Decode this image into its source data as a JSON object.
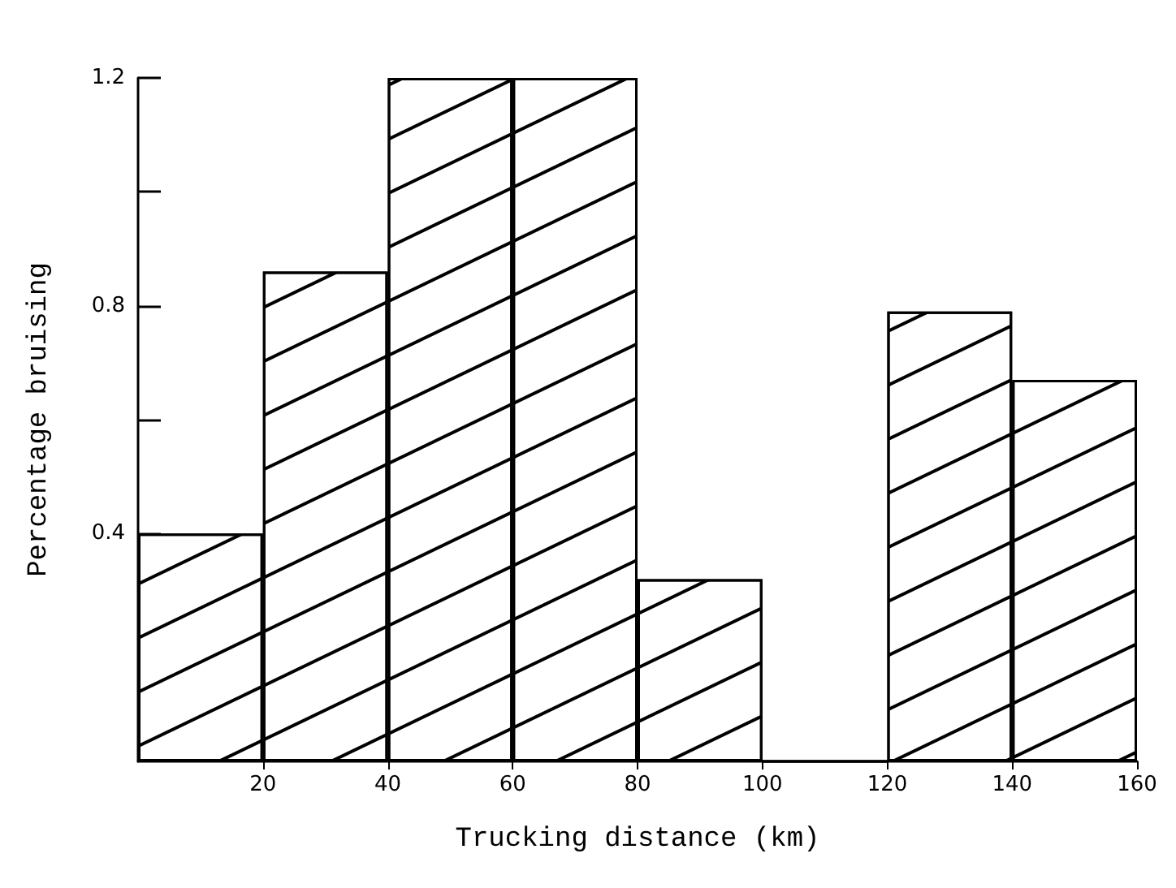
{
  "chart_data": {
    "type": "histogram",
    "xlabel": "Trucking distance (km)",
    "ylabel": "Percentage bruising",
    "bins": [
      0,
      20,
      40,
      60,
      80,
      100,
      120,
      140,
      160
    ],
    "values": [
      0.4,
      0.86,
      1.2,
      1.2,
      0.32,
      0,
      0.79,
      0.67
    ],
    "color": "#ffffff",
    "xlim": [
      0,
      160
    ],
    "xticks": [
      20,
      40,
      60,
      80,
      100,
      120,
      140,
      160
    ],
    "ylim": [
      0,
      1.2
    ],
    "yticks": [
      {
        "value": 0.2,
        "label": null
      },
      0.4,
      {
        "value": 0.6,
        "label": null
      },
      0.8,
      {
        "value": 1.0,
        "label": null
      },
      1.2
    ],
    "grid": false
  }
}
